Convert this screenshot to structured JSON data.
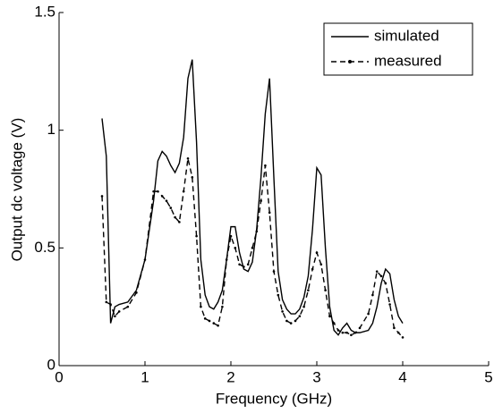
{
  "chart_data": {
    "type": "line",
    "xlabel": "Frequency (GHz)",
    "ylabel": "Output dc voltage (V)",
    "x": [
      0.5,
      0.55,
      0.6,
      0.65,
      0.7,
      0.8,
      0.9,
      1.0,
      1.1,
      1.15,
      1.2,
      1.25,
      1.3,
      1.35,
      1.4,
      1.45,
      1.5,
      1.55,
      1.6,
      1.65,
      1.7,
      1.75,
      1.8,
      1.85,
      1.9,
      1.95,
      2.0,
      2.05,
      2.1,
      2.15,
      2.2,
      2.25,
      2.3,
      2.35,
      2.4,
      2.45,
      2.5,
      2.55,
      2.6,
      2.65,
      2.7,
      2.75,
      2.8,
      2.85,
      2.9,
      2.95,
      3.0,
      3.05,
      3.1,
      3.15,
      3.2,
      3.25,
      3.3,
      3.35,
      3.4,
      3.45,
      3.5,
      3.6,
      3.65,
      3.7,
      3.75,
      3.8,
      3.85,
      3.9,
      3.95,
      4.0
    ],
    "series": [
      {
        "name": "simulated",
        "color": "#000000",
        "linestyle": "solid",
        "marker": "none",
        "values": [
          1.05,
          0.89,
          0.18,
          0.25,
          0.26,
          0.27,
          0.32,
          0.45,
          0.7,
          0.87,
          0.91,
          0.89,
          0.85,
          0.82,
          0.86,
          0.97,
          1.22,
          1.3,
          0.95,
          0.45,
          0.3,
          0.25,
          0.24,
          0.27,
          0.32,
          0.45,
          0.59,
          0.59,
          0.48,
          0.41,
          0.4,
          0.44,
          0.58,
          0.8,
          1.07,
          1.22,
          0.8,
          0.4,
          0.28,
          0.24,
          0.22,
          0.22,
          0.24,
          0.29,
          0.38,
          0.58,
          0.84,
          0.81,
          0.5,
          0.25,
          0.15,
          0.13,
          0.16,
          0.18,
          0.15,
          0.14,
          0.14,
          0.15,
          0.18,
          0.25,
          0.35,
          0.41,
          0.39,
          0.28,
          0.21,
          0.18
        ]
      },
      {
        "name": "measured",
        "color": "#000000",
        "linestyle": "dashed",
        "marker": "dot",
        "values": [
          0.72,
          0.27,
          0.26,
          0.21,
          0.23,
          0.25,
          0.31,
          0.45,
          0.74,
          0.74,
          0.72,
          0.7,
          0.67,
          0.63,
          0.61,
          0.74,
          0.88,
          0.8,
          0.55,
          0.25,
          0.2,
          0.19,
          0.18,
          0.17,
          0.25,
          0.45,
          0.55,
          0.5,
          0.43,
          0.42,
          0.43,
          0.5,
          0.57,
          0.7,
          0.85,
          0.65,
          0.4,
          0.3,
          0.23,
          0.19,
          0.18,
          0.19,
          0.21,
          0.25,
          0.32,
          0.41,
          0.48,
          0.43,
          0.32,
          0.21,
          0.18,
          0.15,
          0.14,
          0.14,
          0.13,
          0.14,
          0.16,
          0.22,
          0.3,
          0.4,
          0.38,
          0.35,
          0.26,
          0.16,
          0.14,
          0.12
        ]
      }
    ],
    "xlim": [
      0,
      5
    ],
    "xticks": [
      0,
      1,
      2,
      3,
      4,
      5
    ],
    "ylim": [
      0,
      1.5
    ],
    "yticks": [
      0,
      0.5,
      1,
      1.5
    ],
    "legend": "upper right"
  }
}
